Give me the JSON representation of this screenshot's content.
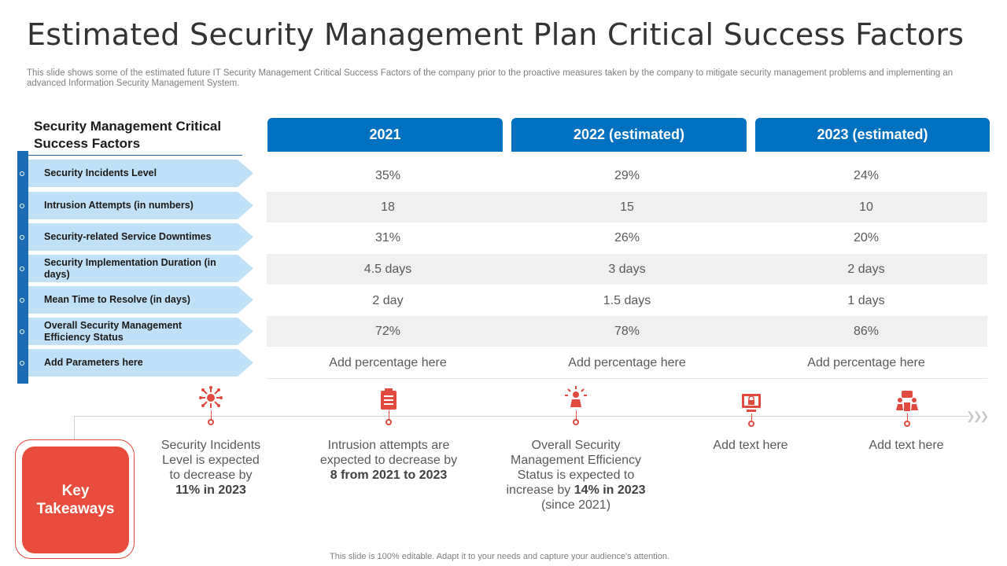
{
  "title": "Estimated Security Management Plan Critical Success Factors",
  "subtitle": "This slide shows some of the estimated future IT Security Management Critical Success Factors of the company prior to the proactive measures taken by the company to mitigate security management problems and implementing an advanced Information Security Management System.",
  "table": {
    "left_header": "Security Management Critical Success Factors",
    "years": [
      "2021",
      "2022 (estimated)",
      "2023 (estimated)"
    ],
    "rows": [
      {
        "factor": "Security Incidents Level",
        "values": [
          "35%",
          "29%",
          "24%"
        ]
      },
      {
        "factor": "Intrusion Attempts (in numbers)",
        "values": [
          "18",
          "15",
          "10"
        ]
      },
      {
        "factor": "Security-related Service Downtimes",
        "values": [
          "31%",
          "26%",
          "20%"
        ]
      },
      {
        "factor": "Security Implementation Duration (in days)",
        "values": [
          "4.5 days",
          "3 days",
          "2 days"
        ]
      },
      {
        "factor": "Mean Time to Resolve (in days)",
        "values": [
          "2 day",
          "1.5 days",
          "1 days"
        ]
      },
      {
        "factor": "Overall Security Management Efficiency Status",
        "values": [
          "72%",
          "78%",
          "86%"
        ]
      },
      {
        "factor": "Add Parameters here",
        "values": [
          "Add percentage here",
          "Add percentage here",
          "Add percentage here"
        ]
      }
    ]
  },
  "key_takeaways_label": "Key Takeaways",
  "takeaways": [
    {
      "icon": "network-hub-icon",
      "text_before": "Security Incidents Level is expected to decrease by",
      "bold": "11% in 2023",
      "text_after": ""
    },
    {
      "icon": "clipboard-icon",
      "text_before": "Intrusion attempts are expected to decrease by",
      "bold": "8 from 2021 to 2023",
      "text_after": ""
    },
    {
      "icon": "person-idea-icon",
      "text_before": "Overall Security Management Efficiency Status is expected to increase by",
      "bold": "14% in 2023",
      "text_after": "(since 2021)"
    },
    {
      "icon": "computer-lock-icon",
      "text_before": "Add text here",
      "bold": "",
      "text_after": ""
    },
    {
      "icon": "team-meeting-icon",
      "text_before": "Add text here",
      "bold": "",
      "text_after": ""
    }
  ],
  "footer": "This slide is 100% editable. Adapt it to your needs and capture your audience's attention.",
  "colors": {
    "header_blue": "#0070c0",
    "factor_fill": "#bfe0f6",
    "accent_red": "#e74c3c"
  }
}
